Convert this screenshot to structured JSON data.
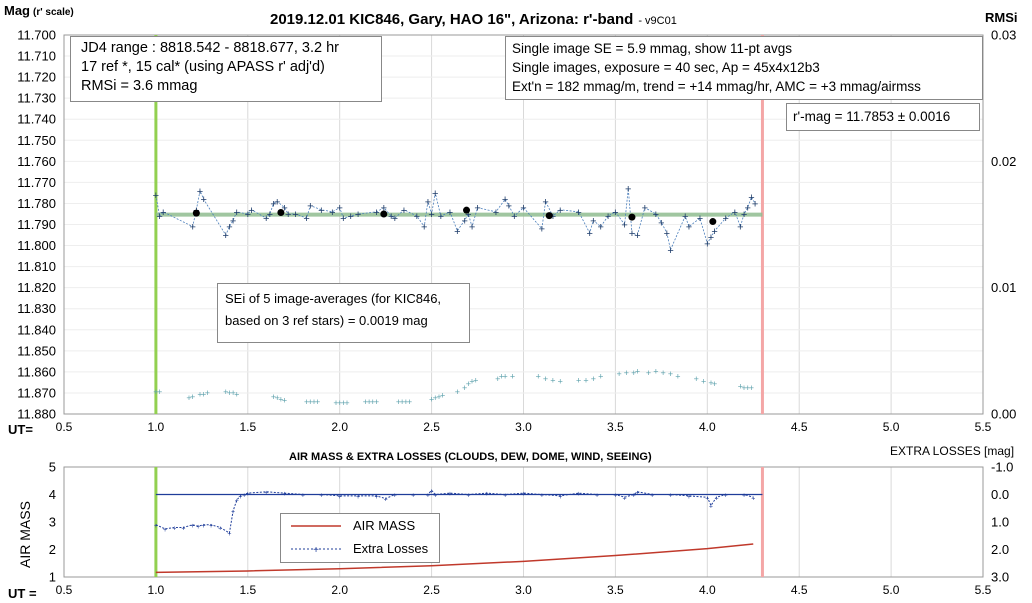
{
  "chart_data": [
    {
      "type": "scatter",
      "title": "2019.12.01 KIC846, Gary, HAO 16\", Arizona: r'-band",
      "title_suffix": "- v9C01",
      "ylabel": "Mag",
      "ylabel_suffix": "(r' scale)",
      "y2label": "RMSi",
      "xlabel": "UT=",
      "xlim": [
        0.5,
        5.5
      ],
      "ylim": [
        11.7,
        11.88
      ],
      "y_inverted": true,
      "y2lim": [
        0.0,
        0.03
      ],
      "x_ticks": [
        "0.5",
        "1.0",
        "1.5",
        "2.0",
        "2.5",
        "3.0",
        "3.5",
        "4.0",
        "4.5",
        "5.0",
        "5.5"
      ],
      "y_ticks": [
        "11.700",
        "11.710",
        "11.720",
        "11.730",
        "11.740",
        "11.750",
        "11.760",
        "11.770",
        "11.780",
        "11.790",
        "11.800",
        "11.810",
        "11.820",
        "11.830",
        "11.840",
        "11.850",
        "11.860",
        "11.870",
        "11.880"
      ],
      "y2_ticks": [
        "0.03",
        "0.02",
        "0.01",
        "0.00"
      ],
      "vlines": [
        {
          "x": 1.0,
          "color": "#92d050"
        },
        {
          "x": 4.3,
          "color": "#f4a6a6"
        }
      ],
      "trend": {
        "x": [
          1.0,
          4.3
        ],
        "y": [
          11.7853,
          11.7853
        ],
        "color": "#8fbc8f"
      },
      "series": [
        {
          "name": "single images",
          "color": "#4a7ebb",
          "x": [
            1.0,
            1.02,
            1.04,
            1.2,
            1.22,
            1.24,
            1.26,
            1.38,
            1.4,
            1.42,
            1.44,
            1.5,
            1.52,
            1.6,
            1.62,
            1.64,
            1.66,
            1.7,
            1.72,
            1.76,
            1.82,
            1.84,
            1.9,
            1.96,
            2.0,
            2.02,
            2.06,
            2.1,
            2.2,
            2.24,
            2.28,
            2.3,
            2.35,
            2.42,
            2.46,
            2.48,
            2.5,
            2.52,
            2.55,
            2.6,
            2.64,
            2.68,
            2.7,
            2.72,
            2.75,
            2.85,
            2.9,
            2.92,
            2.95,
            3.0,
            3.1,
            3.12,
            3.16,
            3.2,
            3.3,
            3.36,
            3.38,
            3.42,
            3.46,
            3.5,
            3.55,
            3.57,
            3.59,
            3.62,
            3.66,
            3.72,
            3.75,
            3.78,
            3.8,
            3.88,
            3.9,
            3.96,
            4.0,
            4.02,
            4.04,
            4.1,
            4.15,
            4.18,
            4.2,
            4.22,
            4.24,
            4.26
          ],
          "y": [
            11.776,
            11.786,
            11.784,
            11.791,
            11.783,
            11.774,
            11.778,
            11.795,
            11.791,
            11.788,
            11.784,
            11.785,
            11.783,
            11.787,
            11.785,
            11.78,
            11.779,
            11.782,
            11.785,
            11.785,
            11.787,
            11.781,
            11.783,
            11.784,
            11.782,
            11.787,
            11.786,
            11.785,
            11.784,
            11.782,
            11.786,
            11.787,
            11.783,
            11.786,
            11.791,
            11.779,
            11.785,
            11.775,
            11.786,
            11.784,
            11.793,
            11.788,
            11.785,
            11.791,
            11.782,
            11.784,
            11.778,
            11.781,
            11.786,
            11.782,
            11.792,
            11.779,
            11.786,
            11.783,
            11.784,
            11.794,
            11.788,
            11.791,
            11.786,
            11.784,
            11.79,
            11.773,
            11.794,
            11.795,
            11.782,
            11.785,
            11.789,
            11.794,
            11.802,
            11.786,
            11.791,
            11.787,
            11.799,
            11.796,
            11.793,
            11.787,
            11.784,
            11.791,
            11.785,
            11.782,
            11.777,
            11.78
          ]
        },
        {
          "name": "11-pt avgs",
          "color": "#000000",
          "x": [
            1.22,
            1.68,
            2.24,
            2.69,
            3.14,
            3.59,
            4.03
          ],
          "y": [
            11.7846,
            11.7843,
            11.785,
            11.7832,
            11.7858,
            11.7865,
            11.7886
          ]
        },
        {
          "name": "RMSi",
          "axis": "y2",
          "color": "#5fa2ad",
          "x": [
            1.0,
            1.02,
            1.18,
            1.2,
            1.24,
            1.26,
            1.28,
            1.38,
            1.4,
            1.42,
            1.44,
            1.64,
            1.66,
            1.68,
            1.7,
            1.82,
            1.84,
            1.86,
            1.88,
            1.98,
            2.0,
            2.02,
            2.04,
            2.14,
            2.16,
            2.18,
            2.2,
            2.32,
            2.34,
            2.36,
            2.38,
            2.5,
            2.52,
            2.54,
            2.56,
            2.64,
            2.68,
            2.7,
            2.72,
            2.74,
            2.86,
            2.88,
            2.9,
            2.94,
            3.08,
            3.12,
            3.16,
            3.2,
            3.3,
            3.34,
            3.38,
            3.42,
            3.52,
            3.56,
            3.6,
            3.62,
            3.68,
            3.72,
            3.76,
            3.8,
            3.84,
            3.94,
            3.98,
            4.02,
            4.04,
            4.18,
            4.2,
            4.22,
            4.24
          ],
          "y": [
            0.0018,
            0.0018,
            0.0013,
            0.0014,
            0.0016,
            0.0016,
            0.0017,
            0.0018,
            0.0017,
            0.0017,
            0.0016,
            0.0014,
            0.0013,
            0.0012,
            0.0011,
            0.001,
            0.001,
            0.001,
            0.001,
            0.0009,
            0.0009,
            0.0009,
            0.0009,
            0.001,
            0.001,
            0.001,
            0.001,
            0.001,
            0.001,
            0.001,
            0.001,
            0.0012,
            0.0013,
            0.0014,
            0.0015,
            0.0018,
            0.0021,
            0.0024,
            0.0026,
            0.0027,
            0.0028,
            0.003,
            0.003,
            0.003,
            0.003,
            0.0028,
            0.0027,
            0.0026,
            0.0027,
            0.0027,
            0.0028,
            0.003,
            0.0032,
            0.0033,
            0.0033,
            0.0034,
            0.0033,
            0.0034,
            0.0033,
            0.0032,
            0.003,
            0.0028,
            0.0026,
            0.0025,
            0.0024,
            0.0022,
            0.0021,
            0.0021,
            0.0021
          ]
        }
      ],
      "annotations": {
        "box1": [
          "JD4 range : 8818.542 - 8818.677,  3.2  hr",
          "17 ref *, 15 cal* (using APASS r' adj'd)",
          "RMSi = 3.6 mmag"
        ],
        "box2": [
          "Single image SE = 5.9 mmag, show  11-pt avgs",
          "Single images, exposure = 40 sec, Ap = 45x4x12b3",
          "Ext'n = 182 mmag/m, trend =  +14 mmag/hr, AMC = +3 mmag/airmss"
        ],
        "box3": "r'-mag = 11.7853 ± 0.0016",
        "box4": [
          "SEi of 5 image-averages (for KIC846,",
          "based on 3 ref stars) = 0.0019 mag"
        ]
      }
    },
    {
      "type": "line",
      "title": "AIR MASS & EXTRA LOSSES (CLOUDS, DEW, DOME, WIND, SEEING)",
      "ylabel": "AIR MASS",
      "y2label": "EXTRA LOSSES [mag]",
      "xlabel": "UT =",
      "xlim": [
        0.5,
        5.5
      ],
      "ylim": [
        1,
        5
      ],
      "y2lim": [
        -1.0,
        3.0
      ],
      "y2_inverted": true,
      "x_ticks": [
        "0.5",
        "1.0",
        "1.5",
        "2.0",
        "2.5",
        "3.0",
        "3.5",
        "4.0",
        "4.5",
        "5.0",
        "5.5"
      ],
      "y_ticks": [
        "5",
        "4",
        "3",
        "2",
        "1"
      ],
      "y2_ticks": [
        "-1.0",
        "0.0",
        "1.0",
        "2.0",
        "3.0"
      ],
      "vlines": [
        {
          "x": 1.0,
          "color": "#92d050"
        },
        {
          "x": 4.3,
          "color": "#f4a6a6"
        }
      ],
      "zero_line": {
        "x": [
          1.0,
          4.3
        ],
        "y2": [
          0.0,
          0.0
        ],
        "color": "#1f3d9a"
      },
      "legend": [
        "AIR MASS",
        "Extra Losses"
      ],
      "series": [
        {
          "name": "AIR MASS",
          "color": "#c0392b",
          "x": [
            1.0,
            1.5,
            2.0,
            2.5,
            3.0,
            3.5,
            4.0,
            4.25
          ],
          "y": [
            1.17,
            1.22,
            1.3,
            1.41,
            1.57,
            1.78,
            2.03,
            2.2
          ]
        },
        {
          "name": "Extra Losses",
          "axis": "y2",
          "color": "#1f3d9a",
          "x": [
            1.0,
            1.05,
            1.1,
            1.15,
            1.2,
            1.23,
            1.26,
            1.3,
            1.35,
            1.4,
            1.42,
            1.44,
            1.46,
            1.48,
            1.5,
            1.6,
            1.7,
            1.8,
            1.9,
            2.0,
            2.1,
            2.2,
            2.25,
            2.3,
            2.4,
            2.48,
            2.5,
            2.52,
            2.6,
            2.7,
            2.8,
            2.9,
            3.0,
            3.1,
            3.2,
            3.3,
            3.4,
            3.5,
            3.55,
            3.6,
            3.62,
            3.7,
            3.8,
            3.9,
            4.0,
            4.02,
            4.05,
            4.1,
            4.2,
            4.25
          ],
          "y2": [
            1.1,
            1.25,
            1.2,
            1.2,
            1.1,
            1.15,
            1.1,
            1.1,
            1.2,
            1.4,
            0.6,
            0.2,
            0.05,
            0.0,
            -0.05,
            -0.1,
            -0.05,
            0.0,
            0.0,
            0.05,
            0.05,
            0.05,
            0.15,
            0.0,
            0.0,
            0.0,
            -0.15,
            0.0,
            -0.05,
            0.0,
            -0.05,
            0.0,
            -0.05,
            0.0,
            0.05,
            -0.05,
            0.0,
            0.0,
            0.1,
            0.0,
            -0.1,
            0.0,
            0.0,
            0.05,
            0.1,
            0.4,
            0.1,
            0.0,
            0.0,
            0.1
          ]
        }
      ]
    }
  ]
}
